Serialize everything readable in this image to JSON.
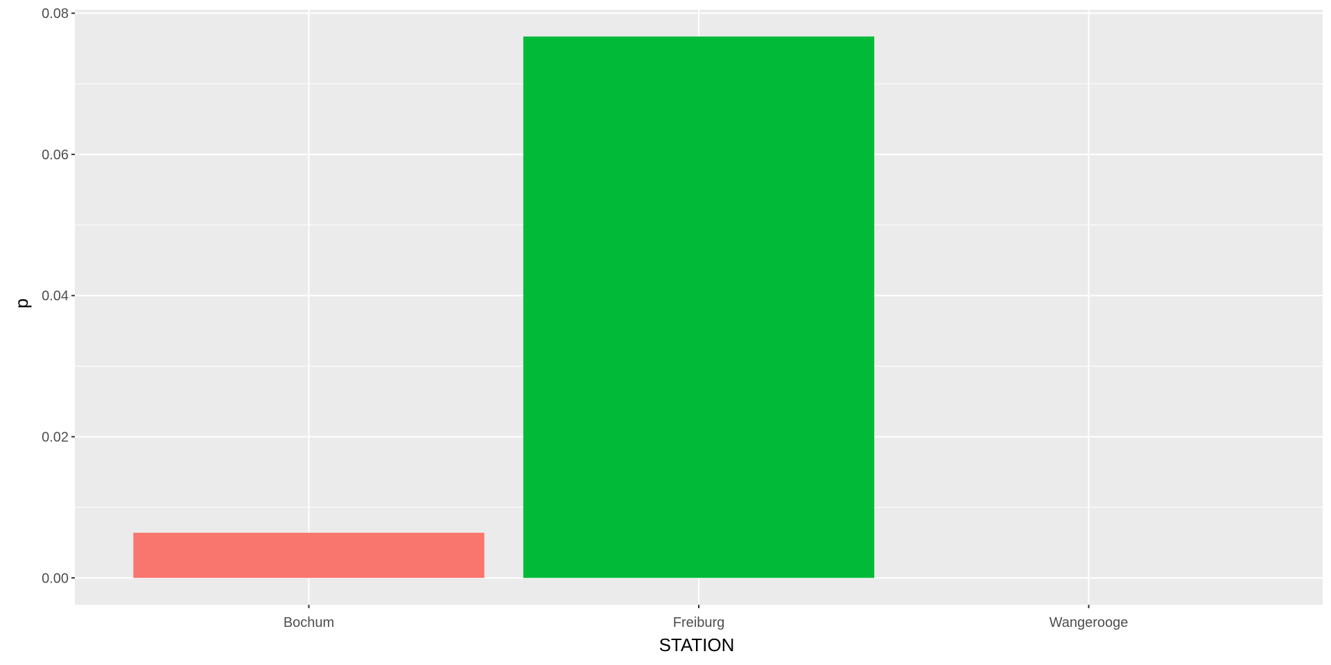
{
  "chart_data": {
    "type": "bar",
    "categories": [
      "Bochum",
      "Freiburg",
      "Wangerooge"
    ],
    "values": [
      0.0064,
      0.0767,
      0.0
    ],
    "colors": [
      "#F8766D",
      "#00BA38",
      "#619CFF"
    ],
    "xlabel": "STATION",
    "ylabel": "p",
    "ylim": [
      -0.0038,
      0.0805
    ],
    "yticks": [
      0.0,
      0.02,
      0.04,
      0.06,
      0.08
    ],
    "ytick_labels": [
      "0.00",
      "0.02",
      "0.04",
      "0.06",
      "0.08"
    ],
    "grid": true,
    "legend": "none",
    "panel_background": "#EBEBEB",
    "grid_color": "#FFFFFF"
  }
}
